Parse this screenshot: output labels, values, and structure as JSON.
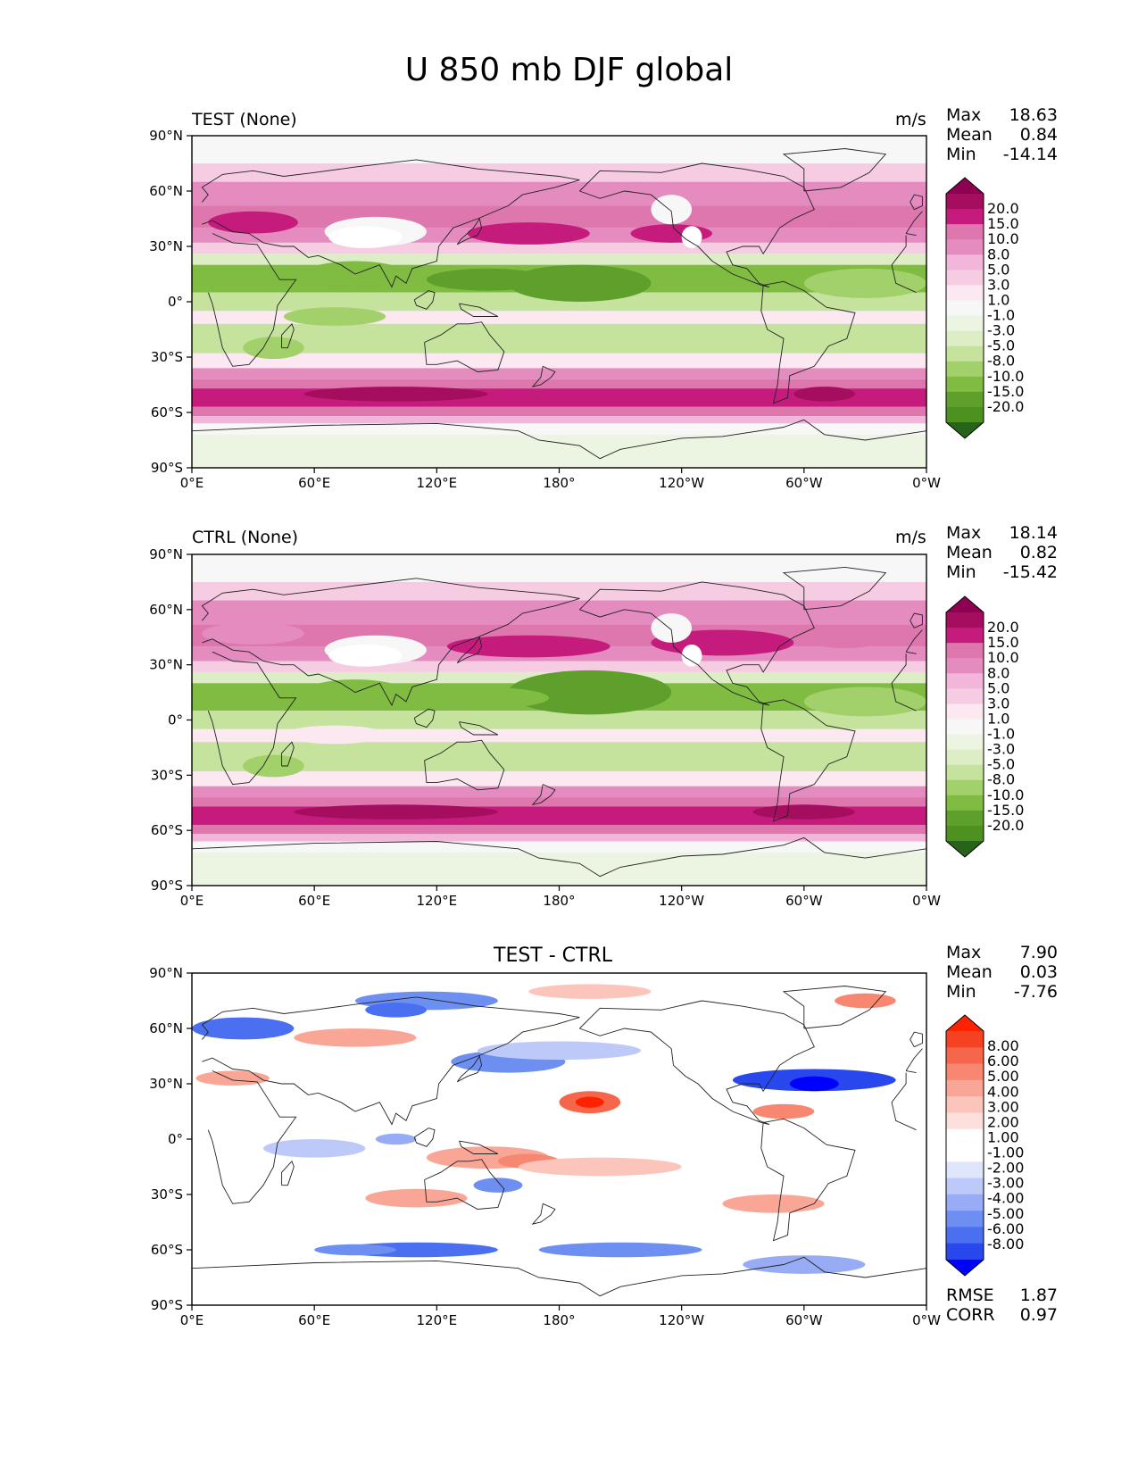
{
  "figure": {
    "title": "U 850 mb DJF global"
  },
  "colors": {
    "land_outline": "#222222",
    "land_fill": "#ffffff",
    "prgn": [
      "#276419",
      "#4d9221",
      "#5fa02c",
      "#7fbc41",
      "#a2d06a",
      "#c6e39e",
      "#ddeec6",
      "#ecf5e1",
      "#f7f7f7",
      "#fbe8f1",
      "#f6cce3",
      "#f1b6da",
      "#e48bc0",
      "#de77ae",
      "#c51b7d",
      "#a50d5e",
      "#8e0152"
    ],
    "bwr": [
      "#0000ff",
      "#2848ee",
      "#4a6ff0",
      "#6e8ff2",
      "#97acf5",
      "#bdc9f8",
      "#dfe5fb",
      "#ffffff",
      "#ffffff",
      "#fde0db",
      "#fcc5bb",
      "#faa696",
      "#f78770",
      "#f5664b",
      "#f44222",
      "#ff2200"
    ]
  },
  "chart_data": [
    {
      "type": "heatmap",
      "panel": "test",
      "title": "TEST (None)",
      "units": "m/s",
      "stats": [
        [
          "Max",
          "18.63"
        ],
        [
          "Mean",
          "0.84"
        ],
        [
          "Min",
          "-14.14"
        ]
      ],
      "colorbar": {
        "palette": "prgn",
        "levels": [
          "20.0",
          "15.0",
          "10.0",
          "8.0",
          "5.0",
          "3.0",
          "1.0",
          "-1.0",
          "-3.0",
          "-5.0",
          "-8.0",
          "-10.0",
          "-15.0",
          "-20.0"
        ]
      },
      "x_ticks": [
        "0°E",
        "60°E",
        "120°E",
        "180°",
        "120°W",
        "60°W",
        "0°W"
      ],
      "y_ticks": [
        "90°N",
        "60°N",
        "30°N",
        "0°",
        "30°S",
        "60°S",
        "90°S"
      ],
      "xlim": [
        0,
        360
      ],
      "ylim": [
        -90,
        90
      ]
    },
    {
      "type": "heatmap",
      "panel": "ctrl",
      "title": "CTRL (None)",
      "units": "m/s",
      "stats": [
        [
          "Max",
          "18.14"
        ],
        [
          "Mean",
          "0.82"
        ],
        [
          "Min",
          "-15.42"
        ]
      ],
      "colorbar": {
        "palette": "prgn",
        "levels": [
          "20.0",
          "15.0",
          "10.0",
          "8.0",
          "5.0",
          "3.0",
          "1.0",
          "-1.0",
          "-3.0",
          "-5.0",
          "-8.0",
          "-10.0",
          "-15.0",
          "-20.0"
        ]
      },
      "x_ticks": [
        "0°E",
        "60°E",
        "120°E",
        "180°",
        "120°W",
        "60°W",
        "0°W"
      ],
      "y_ticks": [
        "90°N",
        "60°N",
        "30°N",
        "0°",
        "30°S",
        "60°S",
        "90°S"
      ],
      "xlim": [
        0,
        360
      ],
      "ylim": [
        -90,
        90
      ]
    },
    {
      "type": "heatmap",
      "panel": "diff",
      "title": "TEST - CTRL",
      "units": "",
      "stats": [
        [
          "Max",
          "7.90"
        ],
        [
          "Mean",
          "0.03"
        ],
        [
          "Min",
          "-7.76"
        ]
      ],
      "extra_stats": [
        [
          "RMSE",
          "1.87"
        ],
        [
          "CORR",
          "0.97"
        ]
      ],
      "colorbar": {
        "palette": "bwr",
        "levels": [
          "8.00",
          "6.00",
          "5.00",
          "4.00",
          "3.00",
          "2.00",
          "1.00",
          "-1.00",
          "-2.00",
          "-3.00",
          "-4.00",
          "-5.00",
          "-6.00",
          "-8.00"
        ]
      },
      "x_ticks": [
        "0°E",
        "60°E",
        "120°E",
        "180°",
        "120°W",
        "60°W",
        "0°W"
      ],
      "y_ticks": [
        "90°N",
        "60°N",
        "30°N",
        "0°",
        "30°S",
        "60°S",
        "90°S"
      ],
      "xlim": [
        0,
        360
      ],
      "ylim": [
        -90,
        90
      ]
    }
  ]
}
